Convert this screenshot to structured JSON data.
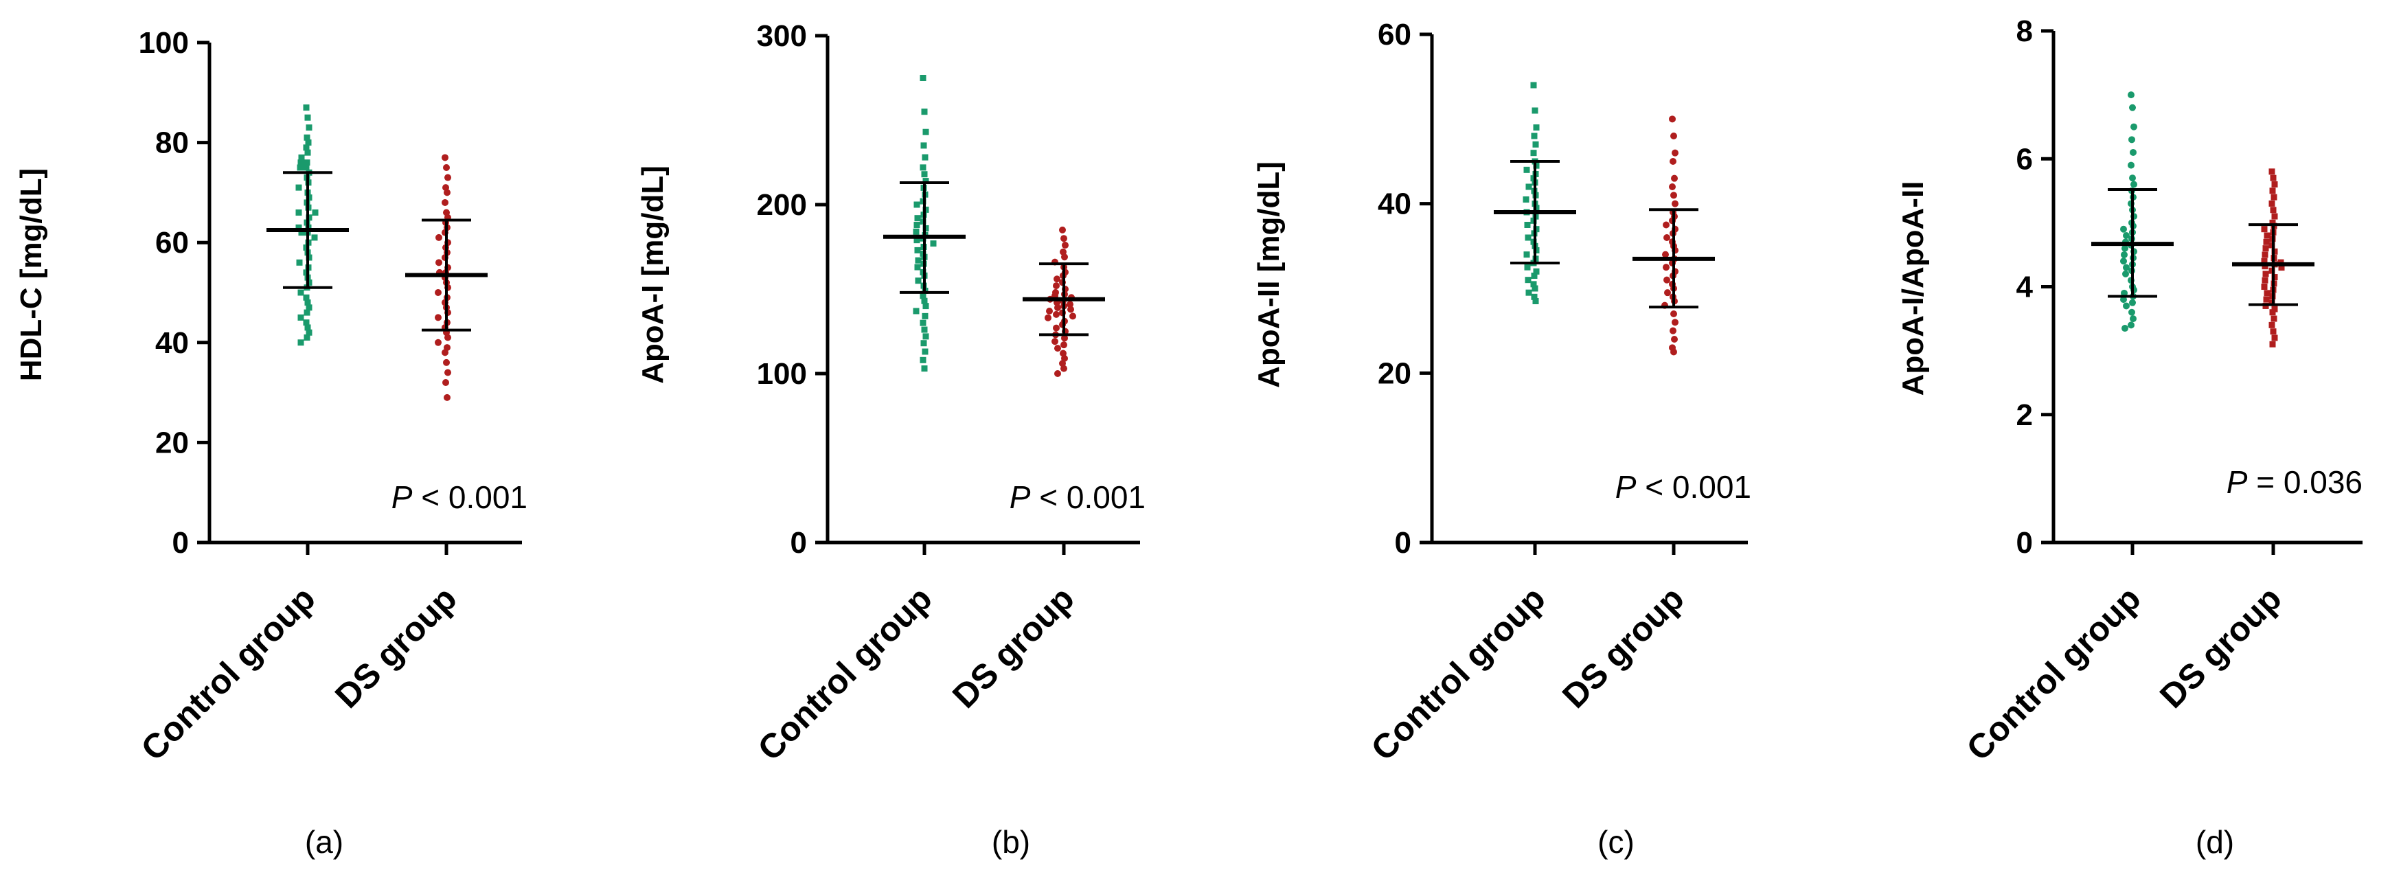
{
  "chart_data": [
    {
      "type": "scatter",
      "panel_label": "(a)",
      "ylabel": "HDL-C [mg/dL]",
      "ylim": [
        0,
        100
      ],
      "yticks": [
        0,
        20,
        40,
        60,
        80,
        100
      ],
      "categories": [
        "Control group",
        "DS group"
      ],
      "p_prefix": "P",
      "p_text": " < 0.001",
      "series": [
        {
          "name": "Control group",
          "color": "#1a9a6c",
          "marker": "square",
          "mean": 62.5,
          "sd_low": 51,
          "sd_high": 74,
          "values": [
            87,
            85,
            83,
            81,
            80,
            79,
            78,
            77,
            76,
            76,
            75,
            75,
            74,
            73,
            72,
            71,
            70,
            69,
            68,
            67,
            66,
            66,
            65,
            64,
            63,
            63,
            62,
            62,
            61,
            60,
            59,
            58,
            57,
            56,
            55,
            54,
            53,
            52,
            51,
            50,
            49,
            48,
            47,
            46,
            45,
            44,
            43,
            42,
            41,
            40
          ]
        },
        {
          "name": "DS group",
          "color": "#b01e1e",
          "marker": "circle",
          "mean": 53.5,
          "sd_low": 42.5,
          "sd_high": 64.5,
          "values": [
            77,
            75,
            73,
            71,
            70,
            68,
            66,
            65,
            64,
            63,
            62,
            61,
            60,
            59,
            58,
            57,
            56,
            55,
            54,
            54,
            53,
            52,
            51,
            50,
            49,
            48,
            47,
            46,
            45,
            44,
            43,
            42,
            41,
            40,
            39,
            38,
            36,
            34,
            32,
            29
          ]
        }
      ]
    },
    {
      "type": "scatter",
      "panel_label": "(b)",
      "ylabel": "ApoA-I [mg/dL]",
      "ylim": [
        0,
        300
      ],
      "yticks": [
        0,
        100,
        200,
        300
      ],
      "categories": [
        "Control group",
        "DS group"
      ],
      "p_prefix": "P",
      "p_text": " < 0.001",
      "series": [
        {
          "name": "Control group",
          "color": "#1a9a6c",
          "marker": "square",
          "mean": 181,
          "sd_low": 148,
          "sd_high": 213,
          "values": [
            275,
            255,
            243,
            235,
            228,
            222,
            218,
            214,
            210,
            206,
            202,
            200,
            197,
            194,
            192,
            190,
            188,
            186,
            184,
            182,
            180,
            179,
            177,
            175,
            173,
            171,
            169,
            167,
            165,
            163,
            160,
            158,
            155,
            152,
            149,
            146,
            143,
            140,
            137,
            134,
            130,
            126,
            122,
            118,
            113,
            108,
            103
          ]
        },
        {
          "name": "DS group",
          "color": "#b01e1e",
          "marker": "circle",
          "mean": 144,
          "sd_low": 123,
          "sd_high": 165,
          "values": [
            185,
            180,
            176,
            172,
            169,
            166,
            163,
            160,
            158,
            156,
            154,
            152,
            150,
            148,
            147,
            146,
            145,
            144,
            143,
            142,
            141,
            140,
            139,
            138,
            137,
            136,
            135,
            134,
            133,
            131,
            129,
            127,
            125,
            123,
            121,
            119,
            117,
            115,
            112,
            109,
            106,
            103,
            100
          ]
        }
      ]
    },
    {
      "type": "scatter",
      "panel_label": "(c)",
      "ylabel": "ApoA-II [mg/dL]",
      "ylim": [
        0,
        60
      ],
      "yticks": [
        0,
        20,
        40,
        60
      ],
      "categories": [
        "Control group",
        "DS group"
      ],
      "p_prefix": "P",
      "p_text": " < 0.001",
      "series": [
        {
          "name": "Control group",
          "color": "#1a9a6c",
          "marker": "square",
          "mean": 39,
          "sd_low": 33,
          "sd_high": 45,
          "values": [
            54,
            51,
            49,
            48,
            47,
            46,
            45,
            44.5,
            44,
            43.5,
            43,
            42.5,
            42,
            41.5,
            41,
            40.5,
            40,
            39.5,
            39,
            38.5,
            38,
            37.5,
            37,
            36.5,
            36,
            35.5,
            35,
            34.5,
            34,
            33.5,
            33,
            32.5,
            32,
            31.5,
            31,
            30.5,
            30,
            29.5,
            29,
            28.5
          ]
        },
        {
          "name": "DS group",
          "color": "#b01e1e",
          "marker": "circle",
          "mean": 33.5,
          "sd_low": 27.8,
          "sd_high": 39.3,
          "values": [
            50,
            48,
            46,
            45,
            43,
            42,
            41,
            40,
            39,
            38.5,
            38,
            37.5,
            37,
            36.5,
            36,
            35.5,
            35,
            34.5,
            34,
            33.5,
            33,
            32.5,
            32,
            31.5,
            31,
            30.5,
            30,
            29.5,
            29,
            28.5,
            28,
            27,
            26,
            25,
            24,
            23,
            22.5
          ]
        }
      ]
    },
    {
      "type": "scatter",
      "panel_label": "(d)",
      "ylabel": "ApoA-I/ApoA-II",
      "ylim": [
        0,
        8
      ],
      "yticks": [
        0,
        2,
        4,
        6,
        8
      ],
      "categories": [
        "Control group",
        "DS group"
      ],
      "p_prefix": "P",
      "p_text": " = 0.036",
      "series": [
        {
          "name": "Control group",
          "color": "#1a9a6c",
          "marker": "circle",
          "mean": 4.67,
          "sd_low": 3.85,
          "sd_high": 5.52,
          "values": [
            7.0,
            6.8,
            6.5,
            6.3,
            6.1,
            5.9,
            5.7,
            5.6,
            5.5,
            5.4,
            5.3,
            5.2,
            5.1,
            5.0,
            4.95,
            4.9,
            4.85,
            4.8,
            4.75,
            4.7,
            4.65,
            4.6,
            4.55,
            4.5,
            4.45,
            4.4,
            4.35,
            4.3,
            4.25,
            4.2,
            4.1,
            4.0,
            3.95,
            3.9,
            3.85,
            3.8,
            3.75,
            3.7,
            3.6,
            3.5,
            3.4,
            3.35
          ]
        },
        {
          "name": "DS group",
          "color": "#b01e1e",
          "marker": "square",
          "mean": 4.35,
          "sd_low": 3.72,
          "sd_high": 4.97,
          "values": [
            5.8,
            5.7,
            5.6,
            5.5,
            5.4,
            5.3,
            5.2,
            5.1,
            5.0,
            4.95,
            4.9,
            4.85,
            4.8,
            4.75,
            4.7,
            4.65,
            4.6,
            4.55,
            4.5,
            4.45,
            4.4,
            4.38,
            4.35,
            4.32,
            4.3,
            4.25,
            4.2,
            4.15,
            4.1,
            4.05,
            4.0,
            3.95,
            3.9,
            3.85,
            3.8,
            3.75,
            3.7,
            3.65,
            3.6,
            3.5,
            3.4,
            3.3,
            3.2,
            3.1
          ]
        }
      ]
    }
  ]
}
